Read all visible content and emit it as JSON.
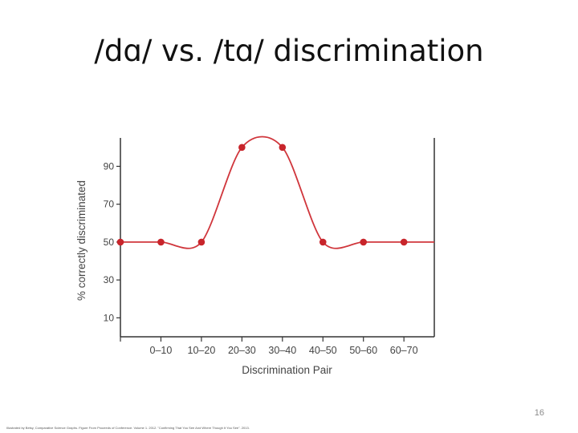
{
  "slide": {
    "title": "/dɑ/ vs. /tɑ/ discrimination",
    "page_number": "16",
    "credit": "Illustrated by Betsy, Comparative Science Graphs. Figure From Proceeds of Conference. Volume 1. 2012. \"Confirming That You See And Where Though It You See\". 2013."
  },
  "chart_data": {
    "type": "line",
    "title": "",
    "xlabel": "Discrimination Pair",
    "ylabel": "% correctly discriminated",
    "categories": [
      "",
      "0–10",
      "10–20",
      "20–30",
      "30–40",
      "40–50",
      "50–60",
      "60–70"
    ],
    "values": [
      50,
      50,
      50,
      100,
      100,
      50,
      50,
      50
    ],
    "ylim": [
      0,
      105
    ],
    "yticks": [
      10,
      30,
      50,
      70,
      90
    ],
    "grid": false,
    "legend": "none",
    "colors": {
      "line": "#d0363c",
      "marker": "#c8252b",
      "axis": "#333333",
      "text": "#444444"
    }
  }
}
